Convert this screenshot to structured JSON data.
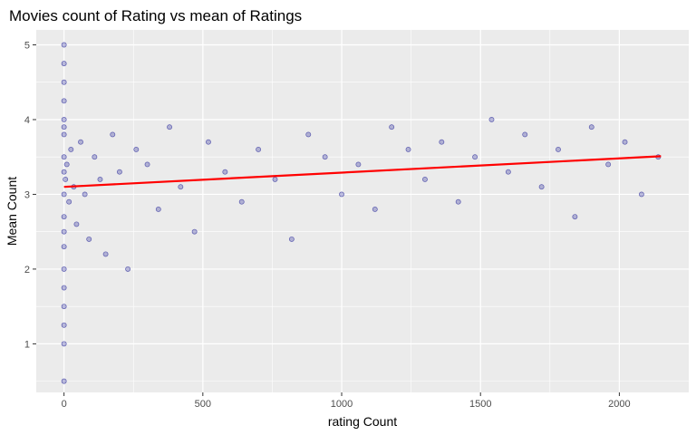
{
  "chart_data": {
    "type": "scatter",
    "title": "Movies count of Rating vs mean of Ratings",
    "xlabel": "rating Count",
    "ylabel": "Mean Count",
    "xlim": [
      -100,
      2250
    ],
    "ylim": [
      0.35,
      5.2
    ],
    "x_ticks": [
      0,
      500,
      1000,
      1500,
      2000
    ],
    "y_ticks": [
      1,
      2,
      3,
      4,
      5
    ],
    "grid": true,
    "legend": "none",
    "colors": {
      "points": "#00008b",
      "trend": "#ff0000",
      "panel": "#ebebeb",
      "grid": "#ffffff"
    },
    "series": [
      {
        "type": "scatter",
        "note_points_estimated": true,
        "x": [
          0,
          0,
          0,
          0,
          0,
          0,
          0,
          0,
          0,
          0,
          0,
          0,
          0,
          0,
          0,
          0,
          0,
          0,
          0,
          5,
          10,
          18,
          25,
          35,
          45,
          60,
          75,
          90,
          110,
          130,
          150,
          175,
          200,
          230,
          260,
          300,
          340,
          380,
          420,
          470,
          520,
          580,
          640,
          700,
          760,
          820,
          880,
          940,
          1000,
          1060,
          1120,
          1180,
          1240,
          1300,
          1360,
          1420,
          1480,
          1540,
          1600,
          1660,
          1720,
          1780,
          1840,
          1900,
          1960,
          2020,
          2080,
          2140
        ],
        "y": [
          5.0,
          4.75,
          4.5,
          4.0,
          3.8,
          3.5,
          3.3,
          3.0,
          2.7,
          2.5,
          2.3,
          2.0,
          1.75,
          1.5,
          1.25,
          1.0,
          0.5,
          4.25,
          3.9,
          3.2,
          3.4,
          2.9,
          3.6,
          3.1,
          2.6,
          3.7,
          3.0,
          2.4,
          3.5,
          3.2,
          2.2,
          3.8,
          3.3,
          2.0,
          3.6,
          3.4,
          2.8,
          3.9,
          3.1,
          2.5,
          3.7,
          3.3,
          2.9,
          3.6,
          3.2,
          2.4,
          3.8,
          3.5,
          3.0,
          3.4,
          2.8,
          3.9,
          3.6,
          3.2,
          3.7,
          2.9,
          3.5,
          4.0,
          3.3,
          3.8,
          3.1,
          3.6,
          2.7,
          3.9,
          3.4,
          3.7,
          3.0,
          3.5
        ]
      },
      {
        "type": "line",
        "x": [
          0,
          2150
        ],
        "y": [
          3.1,
          3.51
        ]
      }
    ]
  }
}
